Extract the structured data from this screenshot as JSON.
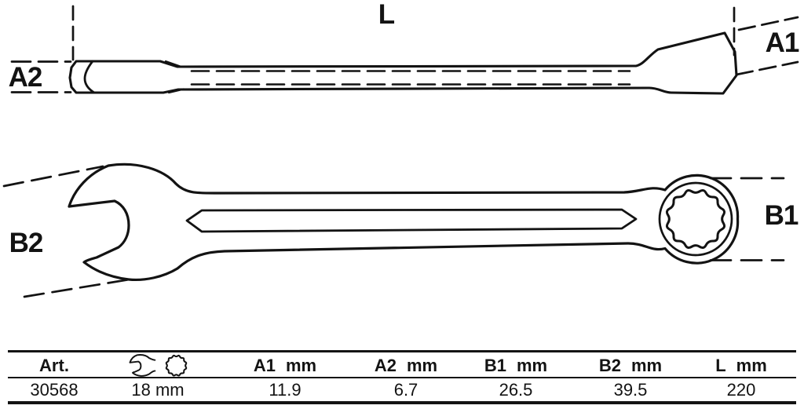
{
  "drawing": {
    "stroke_color": "#131313",
    "background_color": "#ffffff",
    "dim_labels": {
      "l": "L",
      "a1": "A1",
      "a2": "A2",
      "b1": "B1",
      "b2": "B2"
    }
  },
  "table": {
    "columns": [
      {
        "label": "Art.",
        "unit": ""
      },
      {
        "label": "",
        "unit": "",
        "icons": [
          "open-end-wrench-icon",
          "ring-end-12pt-icon"
        ]
      },
      {
        "label": "A1",
        "unit": "mm"
      },
      {
        "label": "A2",
        "unit": "mm"
      },
      {
        "label": "B1",
        "unit": "mm"
      },
      {
        "label": "B2",
        "unit": "mm"
      },
      {
        "label": "L",
        "unit": "mm"
      }
    ],
    "row": {
      "art": "30568",
      "size": "18 mm",
      "a1": "11.9",
      "a2": "6.7",
      "b1": "26.5",
      "b2": "39.5",
      "l": "220"
    }
  }
}
